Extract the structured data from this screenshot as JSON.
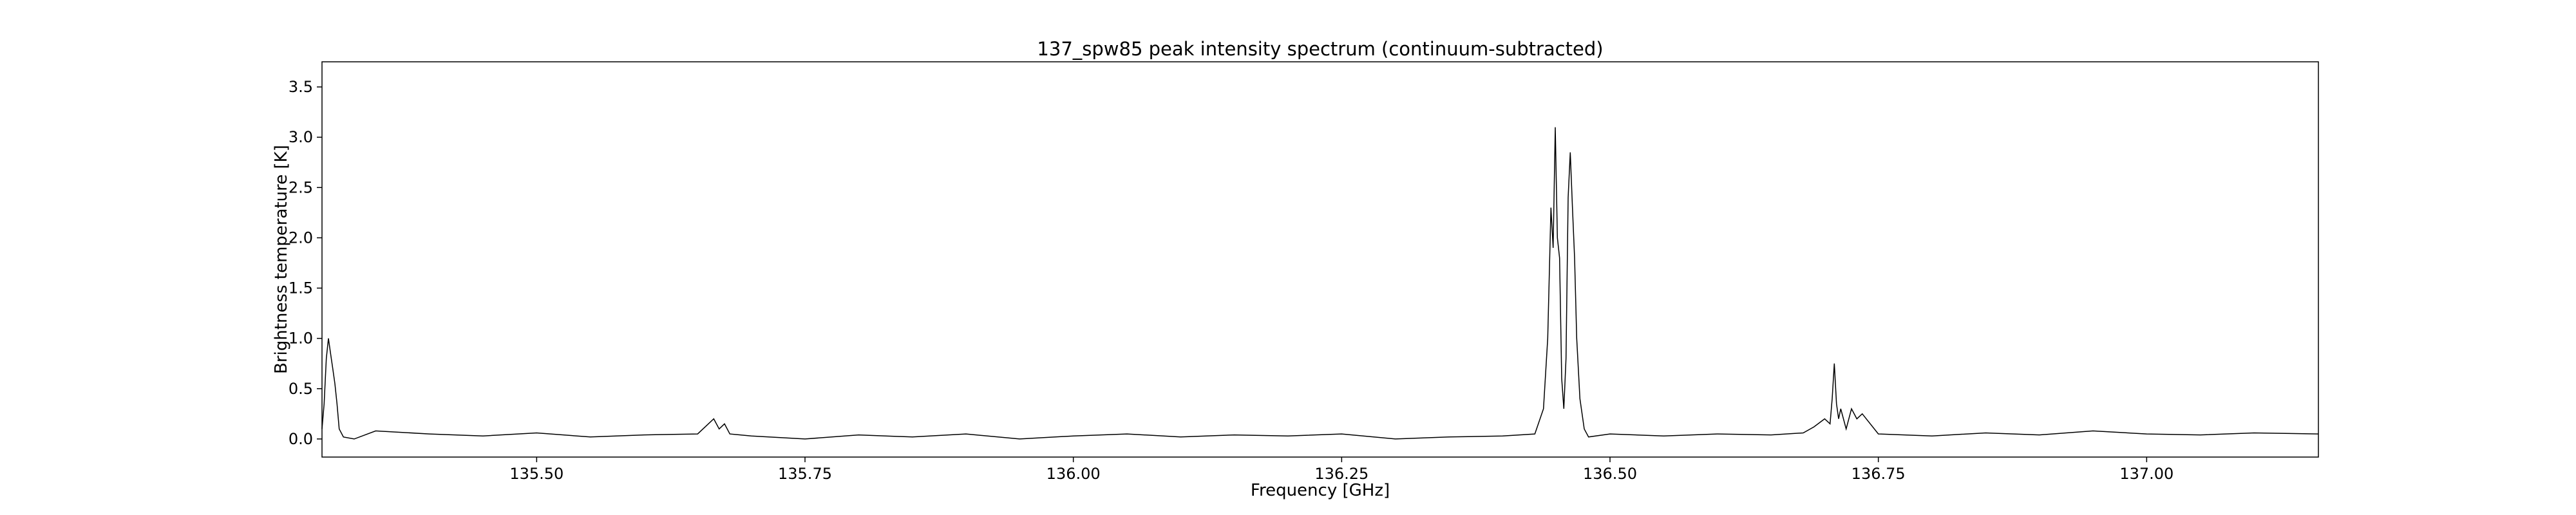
{
  "chart_data": {
    "type": "line",
    "title": "137_spw85 peak intensity spectrum (continuum-subtracted)",
    "xlabel": "Frequency [GHz]",
    "ylabel": "Brightness temperature [K]",
    "xlim": [
      135.3,
      137.16
    ],
    "ylim": [
      -0.18,
      3.75
    ],
    "xticks": [
      135.5,
      135.75,
      136.0,
      136.25,
      136.5,
      136.75,
      137.0
    ],
    "xtick_labels": [
      "135.50",
      "135.75",
      "136.00",
      "136.25",
      "136.50",
      "136.75",
      "137.00"
    ],
    "yticks": [
      0.0,
      0.5,
      1.0,
      1.5,
      2.0,
      2.5,
      3.0,
      3.5
    ],
    "ytick_labels": [
      "0.0",
      "0.5",
      "1.0",
      "1.5",
      "2.0",
      "2.5",
      "3.0",
      "3.5"
    ],
    "grid": false,
    "line_color": "#000000",
    "series": [
      {
        "x": [
          135.3,
          135.302,
          135.304,
          135.306,
          135.308,
          135.31,
          135.312,
          135.314,
          135.316,
          135.32,
          135.33,
          135.35,
          135.4,
          135.45,
          135.5,
          135.55,
          135.6,
          135.65,
          135.665,
          135.67,
          135.675,
          135.68,
          135.7,
          135.75,
          135.8,
          135.85,
          135.9,
          135.95,
          136.0,
          136.05,
          136.1,
          136.15,
          136.2,
          136.25,
          136.3,
          136.35,
          136.4,
          136.43,
          136.438,
          136.442,
          136.445,
          136.447,
          136.449,
          136.451,
          136.453,
          136.455,
          136.457,
          136.459,
          136.461,
          136.463,
          136.465,
          136.467,
          136.469,
          136.472,
          136.476,
          136.48,
          136.5,
          136.55,
          136.6,
          136.65,
          136.68,
          136.69,
          136.7,
          136.705,
          136.707,
          136.709,
          136.711,
          136.713,
          136.715,
          136.72,
          136.725,
          136.73,
          136.735,
          136.75,
          136.8,
          136.85,
          136.9,
          136.95,
          137.0,
          137.05,
          137.1,
          137.16
        ],
        "y": [
          0.1,
          0.35,
          0.8,
          1.0,
          0.85,
          0.7,
          0.55,
          0.35,
          0.1,
          0.02,
          0.0,
          0.08,
          0.05,
          0.03,
          0.06,
          0.02,
          0.04,
          0.05,
          0.2,
          0.1,
          0.15,
          0.05,
          0.03,
          0.0,
          0.04,
          0.02,
          0.05,
          0.0,
          0.03,
          0.05,
          0.02,
          0.04,
          0.03,
          0.05,
          0.0,
          0.02,
          0.03,
          0.05,
          0.3,
          1.0,
          2.3,
          1.9,
          3.1,
          2.0,
          1.8,
          0.6,
          0.3,
          0.8,
          2.4,
          2.85,
          2.3,
          1.8,
          1.0,
          0.4,
          0.1,
          0.02,
          0.05,
          0.03,
          0.05,
          0.04,
          0.06,
          0.12,
          0.2,
          0.15,
          0.4,
          0.75,
          0.35,
          0.2,
          0.3,
          0.1,
          0.3,
          0.2,
          0.25,
          0.05,
          0.03,
          0.06,
          0.04,
          0.08,
          0.05,
          0.04,
          0.06,
          0.05
        ]
      }
    ]
  }
}
